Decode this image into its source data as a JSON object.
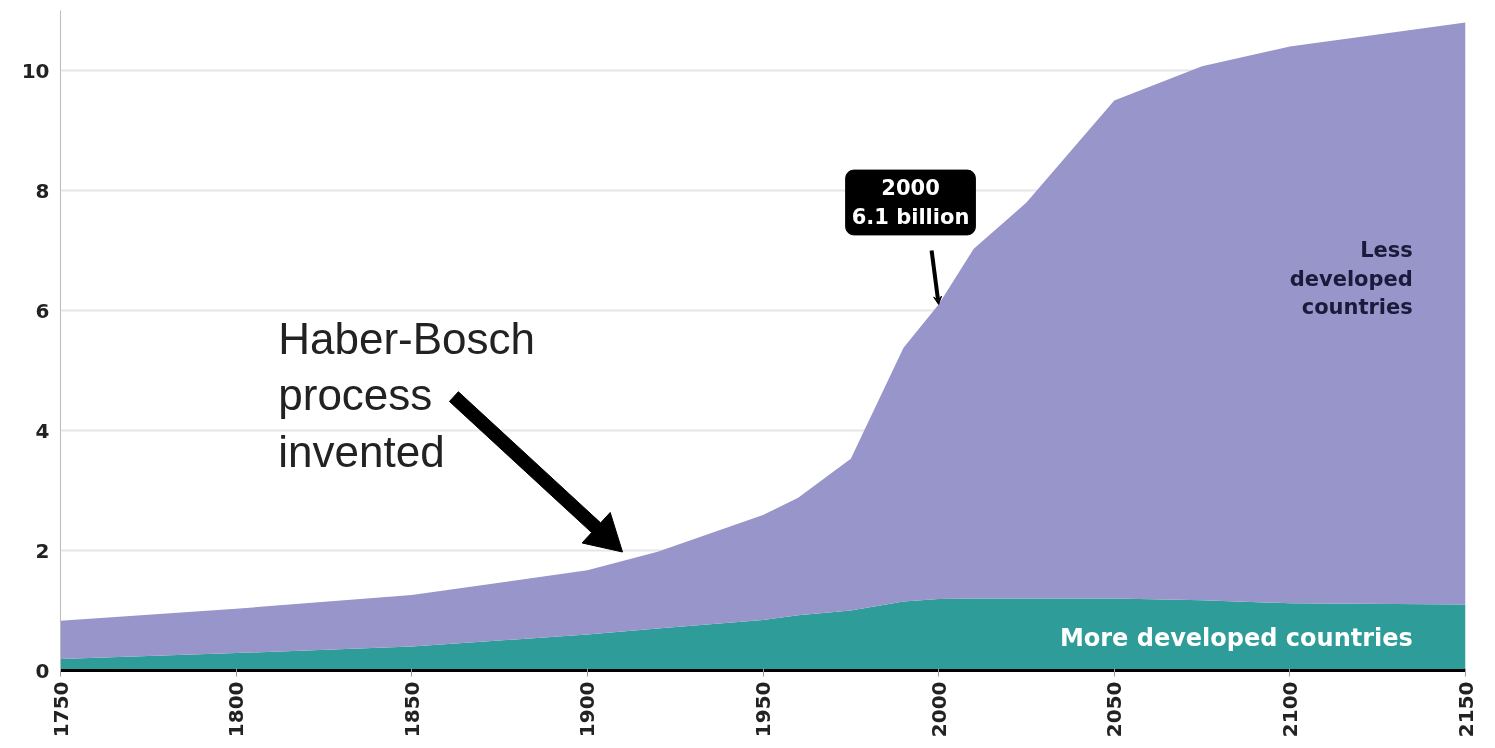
{
  "chart_data": {
    "type": "area",
    "stacked": true,
    "x": [
      1750,
      1800,
      1850,
      1900,
      1920,
      1950,
      1960,
      1975,
      1990,
      2000,
      2010,
      2025,
      2050,
      2075,
      2100,
      2150
    ],
    "series": [
      {
        "name": "More developed countries",
        "color": "#2e9c99",
        "values": [
          0.19,
          0.29,
          0.4,
          0.6,
          0.7,
          0.84,
          0.92,
          1.0,
          1.15,
          1.19,
          1.2,
          1.2,
          1.2,
          1.17,
          1.12,
          1.1
        ]
      },
      {
        "name": "Less developed countries",
        "color": "#9795c9",
        "values": [
          0.64,
          0.74,
          0.86,
          1.07,
          1.28,
          1.75,
          1.96,
          2.53,
          4.23,
          4.91,
          5.83,
          6.6,
          8.3,
          8.9,
          9.28,
          9.7
        ]
      }
    ],
    "xlim": [
      1750,
      2150
    ],
    "xticks": [
      1750,
      1800,
      1850,
      1900,
      1950,
      2000,
      2050,
      2100,
      2150
    ],
    "ylim": [
      0,
      11
    ],
    "yticks": [
      0,
      2,
      4,
      6,
      8,
      10
    ],
    "grid": "y",
    "annotations": [
      "Haber-Bosch\nprocess\ninvented",
      {
        "text": "2000\n6.1 billion",
        "x": 2000,
        "y": 6.1
      }
    ]
  }
}
